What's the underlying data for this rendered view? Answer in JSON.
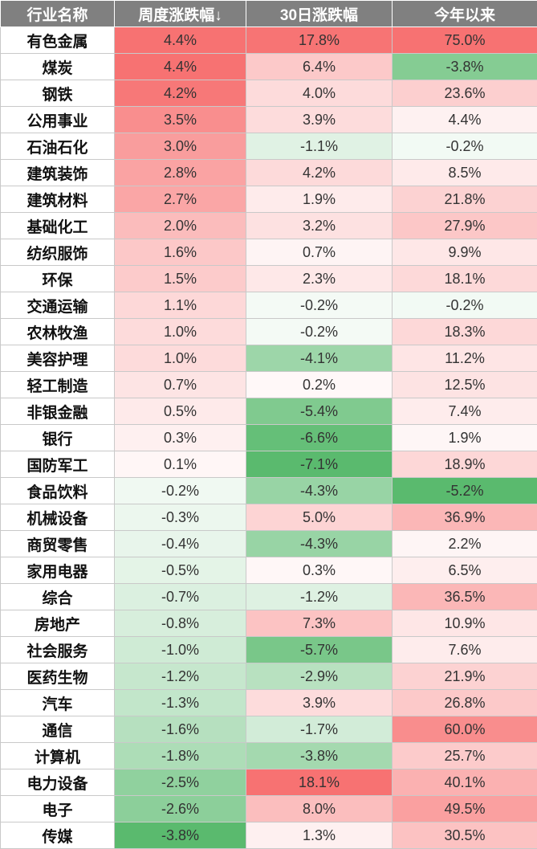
{
  "chart_data": {
    "type": "table",
    "columns": [
      "行业名称",
      "周度涨跌幅↓",
      "30日涨跌幅",
      "今年以来"
    ],
    "rows": [
      [
        "有色金属",
        "4.4%",
        "17.8%",
        "75.0%"
      ],
      [
        "煤炭",
        "4.4%",
        "6.4%",
        "-3.8%"
      ],
      [
        "钢铁",
        "4.2%",
        "4.0%",
        "23.6%"
      ],
      [
        "公用事业",
        "3.5%",
        "3.9%",
        "4.4%"
      ],
      [
        "石油石化",
        "3.0%",
        "-1.1%",
        "-0.2%"
      ],
      [
        "建筑装饰",
        "2.8%",
        "4.2%",
        "8.5%"
      ],
      [
        "建筑材料",
        "2.7%",
        "1.9%",
        "21.8%"
      ],
      [
        "基础化工",
        "2.0%",
        "3.2%",
        "27.9%"
      ],
      [
        "纺织服饰",
        "1.6%",
        "0.7%",
        "9.9%"
      ],
      [
        "环保",
        "1.5%",
        "2.3%",
        "18.1%"
      ],
      [
        "交通运输",
        "1.1%",
        "-0.2%",
        "-0.2%"
      ],
      [
        "农林牧渔",
        "1.0%",
        "-0.2%",
        "18.3%"
      ],
      [
        "美容护理",
        "1.0%",
        "-4.1%",
        "11.2%"
      ],
      [
        "轻工制造",
        "0.7%",
        "0.2%",
        "12.5%"
      ],
      [
        "非银金融",
        "0.5%",
        "-5.4%",
        "7.4%"
      ],
      [
        "银行",
        "0.3%",
        "-6.6%",
        "1.9%"
      ],
      [
        "国防军工",
        "0.1%",
        "-7.1%",
        "18.9%"
      ],
      [
        "食品饮料",
        "-0.2%",
        "-4.3%",
        "-5.2%"
      ],
      [
        "机械设备",
        "-0.3%",
        "5.0%",
        "36.9%"
      ],
      [
        "商贸零售",
        "-0.4%",
        "-4.3%",
        "2.2%"
      ],
      [
        "家用电器",
        "-0.5%",
        "0.3%",
        "6.5%"
      ],
      [
        "综合",
        "-0.7%",
        "-1.2%",
        "36.5%"
      ],
      [
        "房地产",
        "-0.8%",
        "7.3%",
        "10.9%"
      ],
      [
        "社会服务",
        "-1.0%",
        "-5.7%",
        "7.6%"
      ],
      [
        "医药生物",
        "-1.2%",
        "-2.9%",
        "21.9%"
      ],
      [
        "汽车",
        "-1.3%",
        "3.9%",
        "26.8%"
      ],
      [
        "通信",
        "-1.6%",
        "-1.7%",
        "60.0%"
      ],
      [
        "计算机",
        "-1.8%",
        "-3.8%",
        "25.7%"
      ],
      [
        "电力设备",
        "-2.5%",
        "18.1%",
        "40.1%"
      ],
      [
        "电子",
        "-2.6%",
        "8.0%",
        "49.5%"
      ],
      [
        "传媒",
        "-3.8%",
        "1.3%",
        "30.5%"
      ]
    ]
  },
  "colors": {
    "header_bg": "#808080",
    "header_text": "#ffffff",
    "positive": "#f77272",
    "negative": "#5aba6e",
    "neutral": "#ffffff"
  }
}
